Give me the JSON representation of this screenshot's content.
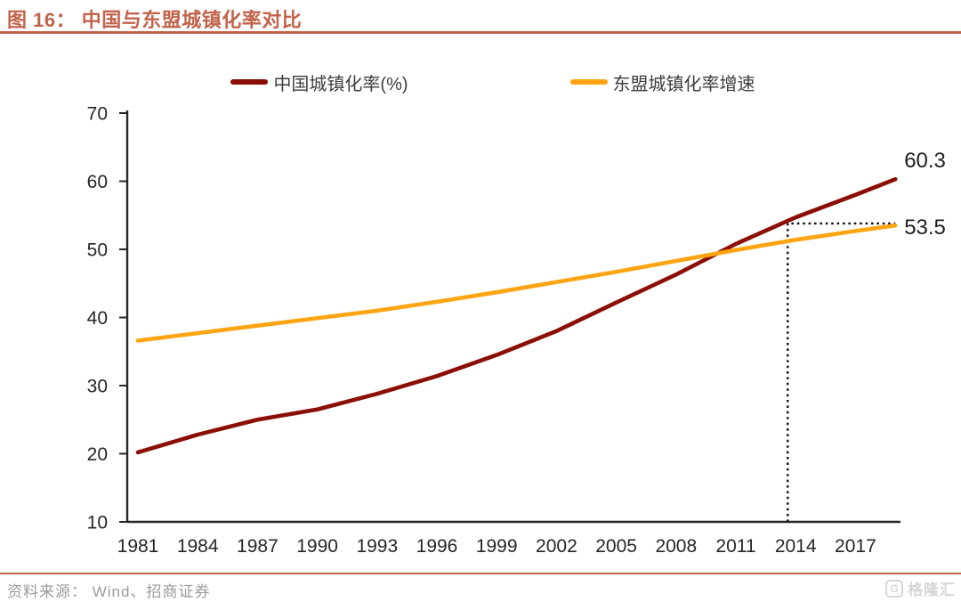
{
  "header": {
    "title": "图 16： 中国与东盟城镇化率对比"
  },
  "colors": {
    "accent": "#C2634B",
    "china_line": "#8B0E04",
    "asean_line": "#FFA412",
    "axis": "#262626",
    "dotted": "#111111",
    "source_text": "#9B9B9B"
  },
  "legend": [
    {
      "label": "中国城镇化率(%)",
      "color": "#8B0E04"
    },
    {
      "label": "东盟城镇化率增速",
      "color": "#FFA412"
    }
  ],
  "chart_data": {
    "type": "line",
    "x": [
      1981,
      1984,
      1987,
      1990,
      1993,
      1996,
      1999,
      2002,
      2005,
      2008,
      2011,
      2014,
      2017,
      2019
    ],
    "series": [
      {
        "name": "中国城镇化率(%)",
        "color": "#8B0E04",
        "values": [
          20.2,
          22.8,
          25.0,
          26.5,
          28.8,
          31.4,
          34.5,
          38.0,
          42.2,
          46.3,
          50.8,
          54.7,
          58.0,
          60.3
        ]
      },
      {
        "name": "东盟城镇化率增速",
        "color": "#FFA412",
        "values": [
          36.6,
          37.7,
          38.8,
          39.9,
          41.0,
          42.3,
          43.7,
          45.2,
          46.7,
          48.3,
          49.9,
          51.4,
          52.7,
          53.5
        ]
      }
    ],
    "xticks": [
      "1981",
      "1984",
      "1987",
      "1990",
      "1993",
      "1996",
      "1999",
      "2002",
      "2005",
      "2008",
      "2011",
      "2014",
      "2017"
    ],
    "yticks": [
      "10",
      "20",
      "30",
      "40",
      "50",
      "60",
      "70"
    ],
    "ylim": [
      10,
      70
    ],
    "grid": false,
    "legend_position": "top-center",
    "end_labels": [
      {
        "text": "60.3",
        "series": 0,
        "value": 60.3
      },
      {
        "text": "53.5",
        "series": 1,
        "value": 53.5
      }
    ],
    "reference_lines": {
      "style": "dotted",
      "vertical_at_year": 2013.6,
      "horizontal_at_value": 53.8
    }
  },
  "footer": {
    "source": "资料来源： Wind、招商证券",
    "logo_text": "格隆汇",
    "logo_letter": "G"
  }
}
